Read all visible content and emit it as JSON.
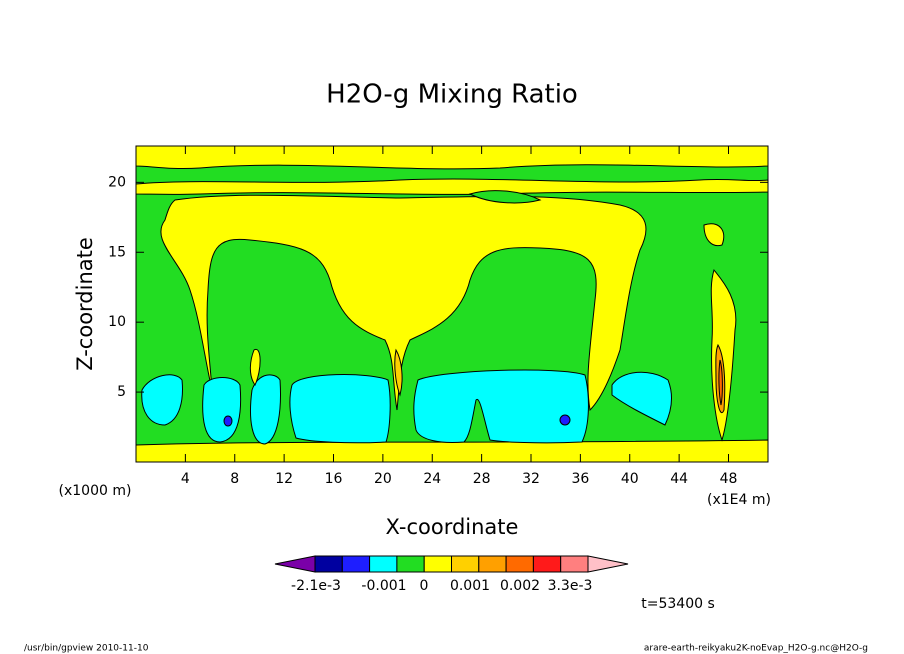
{
  "chart_data": {
    "type": "contour",
    "title": "H2O-g Mixing Ratio",
    "x_label": "X-coordinate",
    "y_label": "Z-coordinate",
    "x_unit": "(x1E4 m)",
    "y_unit": "(x1000 m)",
    "xlim": [
      0,
      51.2
    ],
    "ylim": [
      0,
      22.6
    ],
    "xticks": [
      4,
      8,
      12,
      16,
      20,
      24,
      28,
      32,
      36,
      40,
      44,
      48
    ],
    "yticks": [
      5,
      10,
      15,
      20
    ],
    "colorbar": {
      "colors": [
        "#7a00a8",
        "#0000a0",
        "#1e1eff",
        "#00ffff",
        "#22dd22",
        "#ffff00",
        "#ffd000",
        "#ffa000",
        "#ff6a00",
        "#ff1a1a",
        "#ff7f7f",
        "#ffc0c8"
      ],
      "levels": [
        {
          "value": -0.0021,
          "label": "-2.1e-3"
        },
        {
          "value": -0.001,
          "label": "-0.001"
        },
        0,
        {
          "value": 0.001,
          "label": "0.001"
        },
        {
          "value": 0.002,
          "label": "0.002"
        },
        {
          "value": 0.0033,
          "label": "3.3e-3"
        }
      ]
    },
    "time_label": "t=53400 s",
    "footer_left": "/usr/bin/gpview  2010-11-10",
    "footer_right": "arare-earth-reikyaku2K-noEvap_H2O-g.nc@H2O-g"
  }
}
